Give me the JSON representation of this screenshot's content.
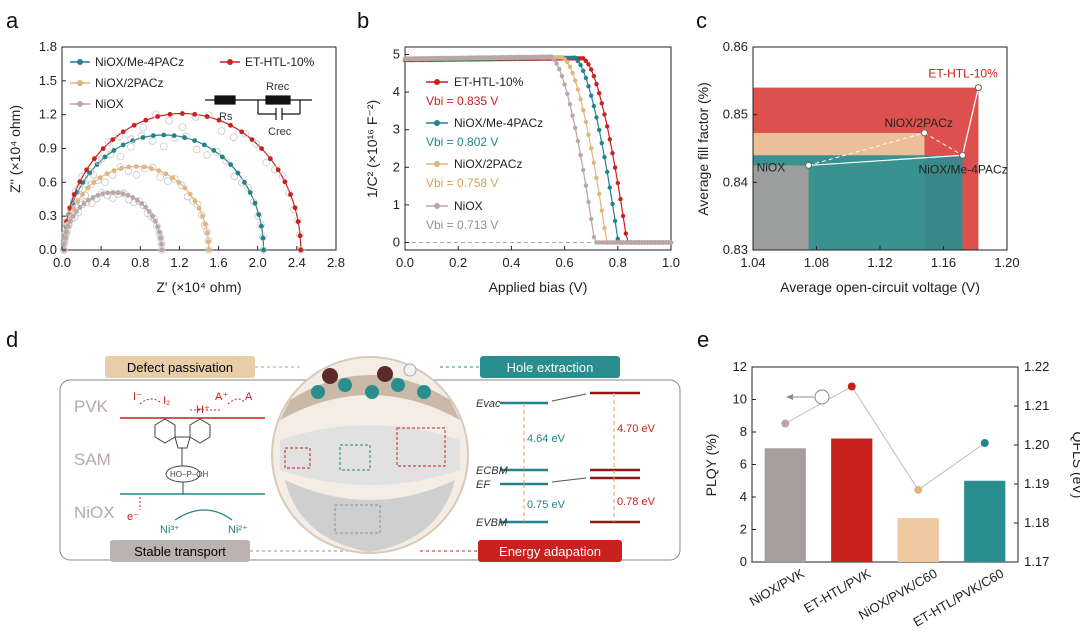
{
  "panels": {
    "a": "a",
    "b": "b",
    "c": "c",
    "d": "d",
    "e": "e"
  },
  "colors": {
    "et": "#c8211e",
    "me": "#23838c",
    "twopacz": "#e2b57f",
    "niox": "#b9a6a6",
    "et_fill": "#d9413f",
    "me_fill": "#2a8e8f",
    "two_fill": "#eec9a0",
    "niox_fill": "#a59e9e"
  },
  "chart_data": [
    {
      "id": "a",
      "type": "scatter",
      "title": "",
      "xlabel": "Z' (×10⁴ ohm)",
      "ylabel": "Z'' (×10⁴ ohm)",
      "xlim": [
        0,
        2.8
      ],
      "ylim": [
        0,
        1.8
      ],
      "xticks": [
        "0.0",
        "0.4",
        "0.8",
        "1.2",
        "1.6",
        "2.0",
        "2.4",
        "2.8"
      ],
      "yticks": [
        "0.0",
        "0.3",
        "0.6",
        "0.9",
        "1.2",
        "1.5",
        "1.8"
      ],
      "legend": [
        "NiOX/Me-4PACz",
        "ET-HTL-10%",
        "NiOX/2PACz",
        "NiOX"
      ],
      "series": [
        {
          "name": "NiOX/Me-4PACz",
          "color_key": "me",
          "rs": 0.02,
          "rrec": 2.06,
          "peak": 1.02
        },
        {
          "name": "ET-HTL-10%",
          "color_key": "et",
          "rs": 0.02,
          "rrec": 2.44,
          "peak": 1.21
        },
        {
          "name": "NiOX/2PACz",
          "color_key": "twopacz",
          "rs": 0.02,
          "rrec": 1.5,
          "peak": 0.74
        },
        {
          "name": "NiOX",
          "color_key": "niox",
          "rs": 0.02,
          "rrec": 1.02,
          "peak": 0.51
        }
      ],
      "circuit": {
        "rs": "Rs",
        "rrec": "Rrec",
        "crec": "Crec"
      }
    },
    {
      "id": "b",
      "type": "line",
      "xlabel": "Applied bias (V)",
      "ylabel": "1/C² (×10¹⁶ F⁻²)",
      "xlim": [
        0,
        1.0
      ],
      "ylim": [
        -0.2,
        5.2
      ],
      "xticks": [
        "0.0",
        "0.2",
        "0.4",
        "0.6",
        "0.8",
        "1.0"
      ],
      "yticks": [
        "0",
        "1",
        "2",
        "3",
        "4",
        "5"
      ],
      "series": [
        {
          "name": "ET-HTL-10%",
          "vbi_label": "Vbi = 0.835 V",
          "vbi": 0.835,
          "color_key": "et"
        },
        {
          "name": "NiOX/Me-4PACz",
          "vbi_label": "Vbi = 0.802 V",
          "vbi": 0.802,
          "color_key": "me"
        },
        {
          "name": "NiOX/2PACz",
          "vbi_label": "Vbi = 0.758 V",
          "vbi": 0.758,
          "color_key": "twopacz"
        },
        {
          "name": "NiOX",
          "vbi_label": "Vbi = 0.713 V",
          "vbi": 0.713,
          "color_key": "niox"
        }
      ]
    },
    {
      "id": "c",
      "type": "scatter",
      "xlabel": "Average open-circuit voltage (V)",
      "ylabel": "Average fill factor (%)",
      "xlim": [
        1.04,
        1.2
      ],
      "ylim": [
        0.83,
        0.86
      ],
      "xticks": [
        "1.04",
        "1.08",
        "1.12",
        "1.16",
        "1.20"
      ],
      "yticks": [
        "0.83",
        "0.84",
        "0.85",
        "0.86"
      ],
      "points": [
        {
          "name": "NiOX",
          "voc": 1.075,
          "ff": 0.8425,
          "color_key": "niox_fill"
        },
        {
          "name": "NiOX/2PACz",
          "voc": 1.148,
          "ff": 0.8473,
          "color_key": "two_fill"
        },
        {
          "name": "NiOX/Me-4PACz",
          "voc": 1.172,
          "ff": 0.844,
          "color_key": "me_fill"
        },
        {
          "name": "ET-HTL-10%",
          "voc": 1.182,
          "ff": 0.854,
          "color_key": "et_fill"
        }
      ]
    },
    {
      "id": "e",
      "type": "bar",
      "categories": [
        "NiOX/PVK",
        "ET-HTL/PVK",
        "NiOX/PVK/C60",
        "ET-HTL/PVK/C60"
      ],
      "values": [
        7.0,
        7.6,
        2.7,
        5.0
      ],
      "ylabel": "PLQY (%)",
      "ylim": [
        0,
        12
      ],
      "yticks": [
        "0",
        "2",
        "4",
        "6",
        "8",
        "10",
        "12"
      ],
      "y2label": "QFLS (eV)",
      "y2lim": [
        1.17,
        1.22
      ],
      "y2ticks": [
        "1.17",
        "1.18",
        "1.19",
        "1.20",
        "1.21",
        "1.22"
      ],
      "qfls": [
        1.2055,
        1.215,
        1.1885,
        1.2005
      ],
      "qfls_err": [
        0.0005,
        0.0008,
        0.0006,
        0.0008
      ]
    }
  ],
  "panel_d": {
    "defect": "Defect passivation",
    "hole": "Hole extraction",
    "stable": "Stable transport",
    "energy": "Energy adapation",
    "pvk": "PVK",
    "sam": "SAM",
    "niox": "NiOX",
    "ni3": "Ni³⁺",
    "ni2": "Ni²⁺",
    "eminus": "e⁻",
    "iminus": "I⁻",
    "i2": "I₂",
    "hplus": "H⁺",
    "aplus": "A⁺",
    "a": "A",
    "evac": "Evac",
    "ecbm": "ECBM",
    "ef": "EF",
    "evbm": "EVBM",
    "gap1": "4.64 eV",
    "gap2": "4.70 eV",
    "gap3": "0.75 eV",
    "gap4": "0.78 eV",
    "pohoh": "HO–P–OH"
  }
}
